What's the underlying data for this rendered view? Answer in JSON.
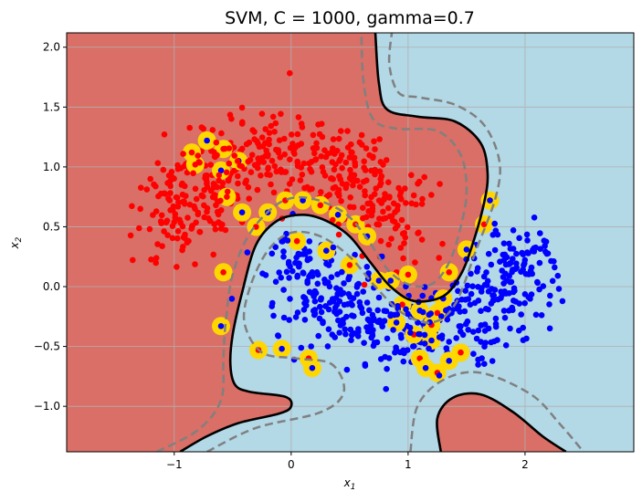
{
  "chart_data": {
    "type": "scatter",
    "title": "SVM, C = 1000, gamma=0.7",
    "xlabel_main": "x",
    "xlabel_sub": "1",
    "ylabel_main": "x",
    "ylabel_sub": "2",
    "xlim": [
      -1.92,
      2.93
    ],
    "ylim": [
      -1.38,
      2.12
    ],
    "xticks": [
      -1,
      0,
      1,
      2
    ],
    "yticks": [
      -1.0,
      -0.5,
      0.0,
      0.5,
      1.0,
      1.5,
      2.0
    ],
    "xtick_labels": [
      "−1",
      "0",
      "1",
      "2"
    ],
    "ytick_labels": [
      "−1.0",
      "−0.5",
      "0.0",
      "0.5",
      "1.0",
      "1.5",
      "2.0"
    ],
    "grid": true,
    "colors": {
      "region_class0": "#d96f66",
      "region_class1": "#b3d8e6",
      "class0_points": "#ff0000",
      "class1_points": "#0000ff",
      "support_vectors": "#ffd700",
      "decision_boundary": "#000000",
      "margin": "#808080"
    },
    "series": [
      {
        "class": 0,
        "color": "red",
        "cluster_center": [
          -0.05,
          0.6
        ],
        "approx_count": 500
      },
      {
        "class": 1,
        "color": "blue",
        "cluster_center": [
          1.0,
          -0.1
        ],
        "approx_count": 500
      }
    ],
    "decision_boundary": [
      [
        -0.95,
        -1.38
      ],
      [
        -0.72,
        -1.25
      ],
      [
        -0.45,
        -1.14
      ],
      [
        -0.1,
        -1.06
      ],
      [
        0.0,
        -1.0
      ],
      [
        -0.05,
        -0.92
      ],
      [
        -0.35,
        -0.88
      ],
      [
        -0.48,
        -0.82
      ],
      [
        -0.52,
        -0.65
      ],
      [
        -0.5,
        -0.4
      ],
      [
        -0.42,
        -0.05
      ],
      [
        -0.3,
        0.35
      ],
      [
        -0.12,
        0.55
      ],
      [
        0.1,
        0.6
      ],
      [
        0.3,
        0.55
      ],
      [
        0.5,
        0.42
      ],
      [
        0.68,
        0.2
      ],
      [
        0.85,
        0.0
      ],
      [
        1.05,
        -0.12
      ],
      [
        1.3,
        -0.08
      ],
      [
        1.45,
        0.1
      ],
      [
        1.55,
        0.35
      ],
      [
        1.65,
        0.7
      ],
      [
        1.68,
        0.95
      ],
      [
        1.62,
        1.2
      ],
      [
        1.4,
        1.38
      ],
      [
        1.08,
        1.42
      ],
      [
        0.82,
        1.48
      ],
      [
        0.75,
        1.7
      ],
      [
        0.72,
        2.12
      ]
    ],
    "decision_boundary_lower": [
      [
        1.28,
        -1.38
      ],
      [
        1.25,
        -1.1
      ],
      [
        1.38,
        -0.93
      ],
      [
        1.62,
        -0.9
      ],
      [
        1.9,
        -1.05
      ],
      [
        2.15,
        -1.25
      ],
      [
        2.35,
        -1.38
      ]
    ],
    "margin_upper": [
      [
        -0.72,
        -1.38
      ],
      [
        -0.3,
        -1.18
      ],
      [
        0.25,
        -1.05
      ],
      [
        0.45,
        -0.88
      ],
      [
        0.35,
        -0.65
      ],
      [
        0.05,
        -0.6
      ],
      [
        -0.25,
        -0.55
      ],
      [
        -0.4,
        -0.3
      ],
      [
        -0.35,
        0.0
      ],
      [
        -0.2,
        0.3
      ],
      [
        0.0,
        0.45
      ],
      [
        0.25,
        0.42
      ],
      [
        0.5,
        0.25
      ],
      [
        0.72,
        0.0
      ],
      [
        0.95,
        -0.22
      ],
      [
        1.2,
        -0.3
      ],
      [
        1.4,
        -0.15
      ],
      [
        1.58,
        0.3
      ],
      [
        1.75,
        0.75
      ],
      [
        1.78,
        1.05
      ],
      [
        1.65,
        1.35
      ],
      [
        1.4,
        1.52
      ],
      [
        1.1,
        1.58
      ],
      [
        0.92,
        1.62
      ],
      [
        0.84,
        1.85
      ],
      [
        0.86,
        2.12
      ]
    ],
    "margin_lower": [
      [
        -1.15,
        -1.38
      ],
      [
        -0.8,
        -1.2
      ],
      [
        -0.6,
        -0.95
      ],
      [
        -0.58,
        -0.6
      ],
      [
        -0.56,
        -0.3
      ],
      [
        -0.5,
        0.1
      ],
      [
        -0.35,
        0.45
      ],
      [
        -0.1,
        0.7
      ],
      [
        0.15,
        0.74
      ],
      [
        0.45,
        0.62
      ],
      [
        0.65,
        0.4
      ],
      [
        0.82,
        0.15
      ],
      [
        1.0,
        0.02
      ],
      [
        1.2,
        0.02
      ],
      [
        1.35,
        0.2
      ],
      [
        1.45,
        0.5
      ],
      [
        1.5,
        0.8
      ],
      [
        1.45,
        1.1
      ],
      [
        1.25,
        1.3
      ],
      [
        0.9,
        1.32
      ],
      [
        0.7,
        1.4
      ],
      [
        0.62,
        1.7
      ],
      [
        0.6,
        2.12
      ]
    ],
    "margin_lower_right": [
      [
        1.02,
        -1.38
      ],
      [
        1.08,
        -1.0
      ],
      [
        1.3,
        -0.78
      ],
      [
        1.62,
        -0.72
      ],
      [
        2.05,
        -0.9
      ],
      [
        2.3,
        -1.15
      ],
      [
        2.5,
        -1.38
      ]
    ],
    "support_vectors": [
      [
        -0.85,
        1.12
      ],
      [
        -0.72,
        1.22
      ],
      [
        -0.58,
        1.15
      ],
      [
        -0.45,
        1.05
      ],
      [
        -0.82,
        1.02
      ],
      [
        -0.6,
        0.97
      ],
      [
        -0.55,
        0.75
      ],
      [
        -0.42,
        0.62
      ],
      [
        -0.3,
        0.5
      ],
      [
        -0.2,
        0.62
      ],
      [
        -0.05,
        0.72
      ],
      [
        0.1,
        0.72
      ],
      [
        0.25,
        0.68
      ],
      [
        0.4,
        0.6
      ],
      [
        0.55,
        0.52
      ],
      [
        0.65,
        0.42
      ],
      [
        -0.58,
        0.12
      ],
      [
        -0.6,
        -0.33
      ],
      [
        -0.28,
        -0.53
      ],
      [
        -0.08,
        -0.52
      ],
      [
        0.15,
        -0.6
      ],
      [
        0.18,
        -0.68
      ],
      [
        0.05,
        0.38
      ],
      [
        0.3,
        0.3
      ],
      [
        0.5,
        0.18
      ],
      [
        0.75,
        0.05
      ],
      [
        0.95,
        -0.15
      ],
      [
        1.1,
        -0.2
      ],
      [
        1.2,
        -0.32
      ],
      [
        1.3,
        -0.1
      ],
      [
        1.35,
        0.12
      ],
      [
        1.5,
        0.31
      ],
      [
        1.65,
        0.52
      ],
      [
        1.7,
        0.72
      ],
      [
        1.1,
        -0.6
      ],
      [
        1.15,
        -0.68
      ],
      [
        1.25,
        -0.72
      ],
      [
        1.35,
        -0.62
      ],
      [
        1.45,
        -0.55
      ],
      [
        1.2,
        -0.45
      ],
      [
        1.05,
        -0.4
      ],
      [
        0.9,
        -0.3
      ],
      [
        1.25,
        -0.22
      ],
      [
        0.85,
        0.05
      ],
      [
        1.0,
        0.1
      ]
    ]
  }
}
